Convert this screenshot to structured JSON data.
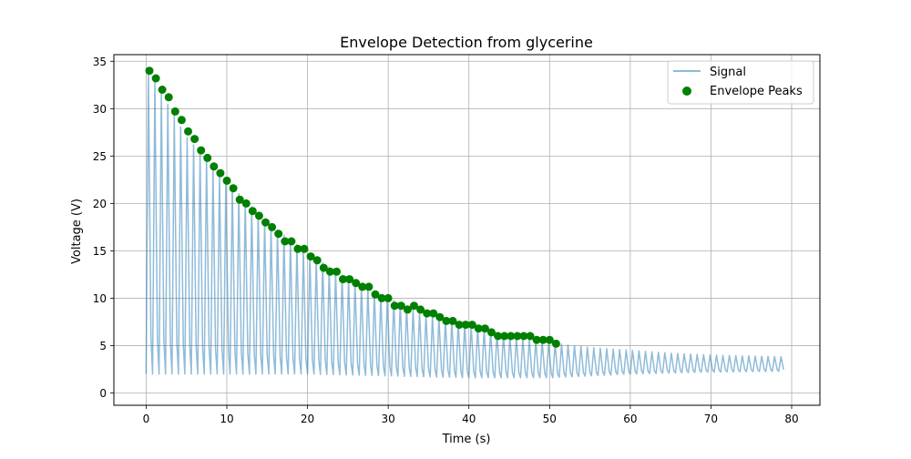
{
  "chart_data": {
    "type": "line",
    "title": "Envelope Detection from glycerine",
    "xlabel": "Time (s)",
    "ylabel": "Voltage (V)",
    "xlim": [
      -4,
      83.5
    ],
    "ylim": [
      -1.3,
      35.7
    ],
    "xticks": [
      0,
      10,
      20,
      30,
      40,
      50,
      60,
      70,
      80
    ],
    "yticks": [
      0,
      5,
      10,
      15,
      20,
      25,
      30,
      35
    ],
    "xtick_labels": [
      "0",
      "10",
      "20",
      "30",
      "40",
      "50",
      "60",
      "70",
      "80"
    ],
    "ytick_labels": [
      "0",
      "5",
      "10",
      "15",
      "20",
      "25",
      "30",
      "35"
    ],
    "grid": true,
    "legend_position": "top-right",
    "series": [
      {
        "name": "Signal",
        "type": "line",
        "color": "#1f77b4",
        "alpha": 0.5,
        "oscillation_period_s": 0.8,
        "start_s": 0,
        "end_s": 79.6,
        "upper_envelope": {
          "t": [
            0.3,
            5,
            10,
            15,
            20,
            25,
            30,
            35,
            40,
            45,
            51,
            55,
            60,
            65,
            70,
            75,
            79.6
          ],
          "v": [
            34,
            27,
            22.3,
            18,
            14.8,
            12,
            10,
            8.2,
            7.2,
            6,
            5.2,
            4.8,
            4.5,
            4.2,
            4.0,
            3.9,
            3.8
          ]
        },
        "lower_envelope": {
          "t": [
            0,
            10,
            20,
            30,
            40,
            50,
            60,
            70,
            79.6
          ],
          "v": [
            2.0,
            2.0,
            2.0,
            1.8,
            1.6,
            1.6,
            2.0,
            2.2,
            2.3
          ]
        }
      },
      {
        "name": "Envelope Peaks",
        "type": "scatter",
        "color": "#008000",
        "x": [
          0.4,
          1.2,
          2.0,
          2.8,
          3.6,
          4.4,
          5.2,
          6.0,
          6.8,
          7.6,
          8.4,
          9.2,
          10.0,
          10.8,
          11.6,
          12.4,
          13.2,
          14.0,
          14.8,
          15.6,
          16.4,
          17.2,
          18.0,
          18.8,
          19.6,
          20.4,
          21.2,
          22.0,
          22.8,
          23.6,
          24.4,
          25.2,
          26.0,
          26.8,
          27.6,
          28.4,
          29.2,
          30.0,
          30.8,
          31.6,
          32.4,
          33.2,
          34.0,
          34.8,
          35.6,
          36.4,
          37.2,
          38.0,
          38.8,
          39.6,
          40.4,
          41.2,
          42.0,
          42.8,
          43.6,
          44.4,
          45.2,
          46.0,
          46.8,
          47.6,
          48.4,
          49.2,
          50.0,
          50.8
        ],
        "y": [
          34.0,
          33.2,
          32.0,
          31.2,
          29.7,
          28.8,
          27.6,
          26.8,
          25.6,
          24.8,
          23.9,
          23.2,
          22.4,
          21.6,
          20.4,
          20.0,
          19.2,
          18.7,
          18.0,
          17.5,
          16.8,
          16.0,
          16.0,
          15.2,
          15.2,
          14.4,
          14.0,
          13.2,
          12.8,
          12.8,
          12.0,
          12.0,
          11.6,
          11.2,
          11.2,
          10.4,
          10.0,
          10.0,
          9.2,
          9.2,
          8.8,
          9.2,
          8.8,
          8.4,
          8.4,
          8.0,
          7.6,
          7.6,
          7.2,
          7.2,
          7.2,
          6.8,
          6.8,
          6.4,
          6.0,
          6.0,
          6.0,
          6.0,
          6.0,
          6.0,
          5.6,
          5.6,
          5.6,
          5.2
        ]
      }
    ]
  }
}
